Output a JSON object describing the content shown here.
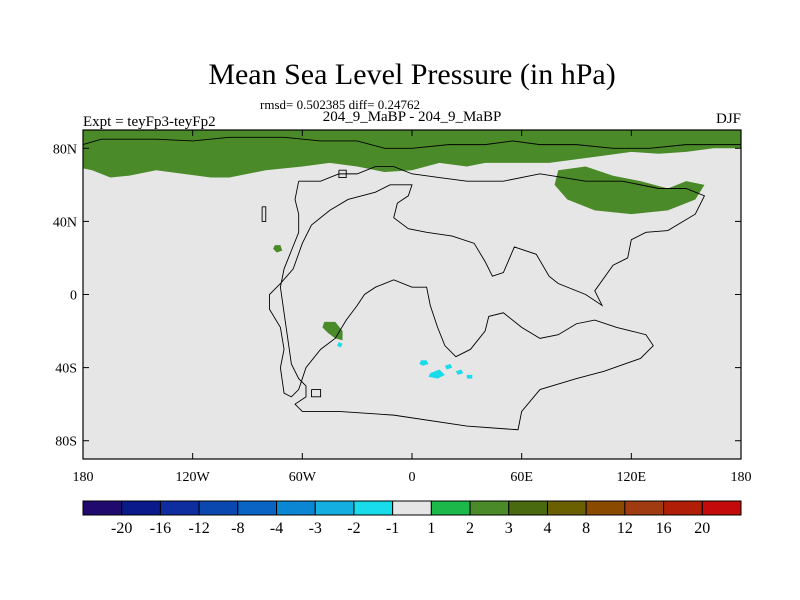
{
  "chart_data": {
    "type": "heatmap",
    "title": "Mean Sea Level Pressure (in hPa)",
    "stats": "rmsd= 0.502385 diff= 0.24762",
    "expt": "Expt = teyFp3-teyFp2",
    "subtitle": "204_9_MaBP - 204_9_MaBP",
    "season": "DJF",
    "x_ticks": [
      {
        "value": -180,
        "label": "180"
      },
      {
        "value": -120,
        "label": "120W"
      },
      {
        "value": -60,
        "label": "60W"
      },
      {
        "value": 0,
        "label": "0"
      },
      {
        "value": 60,
        "label": "60E"
      },
      {
        "value": 120,
        "label": "120E"
      },
      {
        "value": 180,
        "label": "180"
      }
    ],
    "y_ticks": [
      {
        "value": 80,
        "label": "80N"
      },
      {
        "value": 40,
        "label": "40N"
      },
      {
        "value": 0,
        "label": "0"
      },
      {
        "value": -40,
        "label": "40S"
      },
      {
        "value": -80,
        "label": "80S"
      }
    ],
    "xlim": [
      -180,
      180
    ],
    "ylim": [
      -90,
      90
    ],
    "background_value_color": "#e6e6e6",
    "colorbar": {
      "colors": [
        "#200a6e",
        "#0b1a8a",
        "#0e2ea0",
        "#0a48b0",
        "#0a64c4",
        "#0a86d2",
        "#14aee0",
        "#18dcea",
        "#e6e6e6",
        "#1cb84a",
        "#4a8a28",
        "#4a6a10",
        "#6a6000",
        "#8a4a00",
        "#a03a10",
        "#b01e08",
        "#c40a0a"
      ],
      "labels": [
        "-20",
        "-16",
        "-12",
        "-8",
        "-4",
        "-3",
        "-2",
        "-1",
        "1",
        "2",
        "3",
        "4",
        "8",
        "12",
        "16",
        "20"
      ]
    },
    "anomaly_regions": [
      {
        "category": "2",
        "polygon": [
          [
            -180,
            90
          ],
          [
            180,
            90
          ],
          [
            180,
            80
          ],
          [
            165,
            80
          ],
          [
            150,
            78
          ],
          [
            135,
            77
          ],
          [
            120,
            78
          ],
          [
            105,
            76
          ],
          [
            90,
            74
          ],
          [
            75,
            72
          ],
          [
            60,
            72
          ],
          [
            40,
            72
          ],
          [
            30,
            70
          ],
          [
            15,
            72
          ],
          [
            0,
            68
          ],
          [
            -15,
            67
          ],
          [
            -30,
            70
          ],
          [
            -45,
            72
          ],
          [
            -60,
            70
          ],
          [
            -80,
            68
          ],
          [
            -90,
            66
          ],
          [
            -100,
            64
          ],
          [
            -110,
            64
          ],
          [
            -125,
            66
          ],
          [
            -140,
            68
          ],
          [
            -155,
            65
          ],
          [
            -165,
            64
          ],
          [
            -170,
            66
          ],
          [
            -175,
            68
          ],
          [
            -180,
            69
          ]
        ]
      },
      {
        "category": "2",
        "polygon": [
          [
            80,
            68
          ],
          [
            95,
            70
          ],
          [
            110,
            65
          ],
          [
            125,
            62
          ],
          [
            140,
            58
          ],
          [
            150,
            62
          ],
          [
            160,
            60
          ],
          [
            155,
            52
          ],
          [
            140,
            46
          ],
          [
            120,
            44
          ],
          [
            100,
            46
          ],
          [
            85,
            52
          ],
          [
            78,
            60
          ]
        ]
      },
      {
        "category": "2",
        "polygon": [
          [
            -75,
            27
          ],
          [
            -72,
            27
          ],
          [
            -71,
            24
          ],
          [
            -74,
            23
          ],
          [
            -76,
            25
          ]
        ]
      },
      {
        "category": "2",
        "polygon": [
          [
            -48,
            -15
          ],
          [
            -42,
            -15
          ],
          [
            -38,
            -20
          ],
          [
            -38,
            -25
          ],
          [
            -42,
            -24
          ],
          [
            -46,
            -21
          ],
          [
            -49,
            -18
          ]
        ]
      },
      {
        "category": "-1",
        "polygon": [
          [
            -40,
            -26
          ],
          [
            -38,
            -27
          ],
          [
            -39,
            -29
          ],
          [
            -41,
            -28
          ]
        ]
      },
      {
        "category": "-1",
        "polygon": [
          [
            5,
            -36
          ],
          [
            8,
            -36
          ],
          [
            9,
            -38
          ],
          [
            6,
            -39
          ],
          [
            4,
            -38
          ]
        ]
      },
      {
        "category": "-1",
        "polygon": [
          [
            10,
            -43
          ],
          [
            15,
            -41
          ],
          [
            18,
            -44
          ],
          [
            14,
            -46
          ],
          [
            9,
            -45
          ]
        ]
      },
      {
        "category": "-1",
        "polygon": [
          [
            18,
            -39
          ],
          [
            21,
            -38
          ],
          [
            22,
            -40
          ],
          [
            19,
            -41
          ]
        ]
      },
      {
        "category": "-1",
        "polygon": [
          [
            24,
            -42
          ],
          [
            27,
            -41
          ],
          [
            28,
            -43
          ],
          [
            25,
            -44
          ]
        ]
      },
      {
        "category": "-1",
        "polygon": [
          [
            30,
            -44
          ],
          [
            33,
            -44
          ],
          [
            33,
            -46
          ],
          [
            30,
            -46
          ]
        ]
      }
    ],
    "land_outlines": [
      [
        [
          -180,
          82
        ],
        [
          -170,
          85
        ],
        [
          -140,
          85
        ],
        [
          -120,
          84
        ],
        [
          -100,
          86
        ],
        [
          -70,
          86
        ],
        [
          -50,
          84
        ],
        [
          -30,
          84
        ],
        [
          -15,
          80
        ],
        [
          0,
          80
        ],
        [
          20,
          82
        ],
        [
          40,
          82
        ],
        [
          55,
          84
        ],
        [
          70,
          82
        ],
        [
          90,
          82
        ],
        [
          110,
          80
        ],
        [
          130,
          80
        ],
        [
          150,
          82
        ],
        [
          170,
          82
        ],
        [
          180,
          82
        ]
      ],
      [
        [
          -62,
          62
        ],
        [
          -50,
          62
        ],
        [
          -40,
          66
        ],
        [
          -30,
          66
        ],
        [
          -20,
          70
        ],
        [
          -10,
          70
        ],
        [
          0,
          66
        ],
        [
          15,
          64
        ],
        [
          30,
          62
        ],
        [
          50,
          62
        ],
        [
          70,
          66
        ],
        [
          95,
          62
        ],
        [
          115,
          62
        ],
        [
          135,
          58
        ],
        [
          150,
          58
        ],
        [
          160,
          54
        ],
        [
          155,
          44
        ],
        [
          140,
          35
        ],
        [
          128,
          34
        ],
        [
          120,
          30
        ],
        [
          118,
          20
        ],
        [
          110,
          16
        ],
        [
          100,
          2
        ],
        [
          104,
          -6
        ],
        [
          95,
          0
        ],
        [
          80,
          6
        ],
        [
          75,
          10
        ],
        [
          68,
          22
        ],
        [
          56,
          26
        ],
        [
          50,
          12
        ],
        [
          44,
          10
        ],
        [
          40,
          18
        ],
        [
          34,
          28
        ],
        [
          22,
          32
        ],
        [
          8,
          34
        ],
        [
          -2,
          36
        ],
        [
          -10,
          42
        ],
        [
          -8,
          50
        ],
        [
          -2,
          54
        ],
        [
          0,
          60
        ],
        [
          -12,
          60
        ],
        [
          -20,
          56
        ],
        [
          -35,
          52
        ],
        [
          -45,
          46
        ],
        [
          -55,
          38
        ],
        [
          -60,
          28
        ],
        [
          -65,
          14
        ],
        [
          -72,
          6
        ],
        [
          -78,
          0
        ],
        [
          -78,
          -8
        ],
        [
          -72,
          -18
        ],
        [
          -70,
          -30
        ],
        [
          -72,
          -40
        ],
        [
          -70,
          -54
        ],
        [
          -66,
          -56
        ],
        [
          -62,
          -52
        ],
        [
          -58,
          -40
        ],
        [
          -50,
          -30
        ],
        [
          -42,
          -24
        ],
        [
          -36,
          -14
        ],
        [
          -30,
          -6
        ],
        [
          -26,
          0
        ],
        [
          -20,
          4
        ],
        [
          -10,
          8
        ],
        [
          0,
          4
        ],
        [
          8,
          4
        ],
        [
          10,
          -6
        ],
        [
          14,
          -18
        ],
        [
          18,
          -28
        ],
        [
          24,
          -34
        ],
        [
          32,
          -30
        ],
        [
          40,
          -20
        ],
        [
          42,
          -12
        ],
        [
          50,
          -10
        ],
        [
          60,
          -18
        ],
        [
          70,
          -24
        ],
        [
          80,
          -22
        ],
        [
          90,
          -16
        ],
        [
          100,
          -14
        ],
        [
          112,
          -18
        ],
        [
          120,
          -20
        ],
        [
          128,
          -22
        ],
        [
          132,
          -28
        ],
        [
          125,
          -35
        ],
        [
          105,
          -42
        ],
        [
          90,
          -46
        ],
        [
          70,
          -52
        ],
        [
          60,
          -64
        ],
        [
          58,
          -74
        ],
        [
          30,
          -72
        ],
        [
          -10,
          -66
        ],
        [
          -40,
          -64
        ],
        [
          -60,
          -64
        ],
        [
          -64,
          -60
        ],
        [
          -58,
          -56
        ],
        [
          -58,
          -50
        ],
        [
          -62,
          -46
        ],
        [
          -66,
          -38
        ],
        [
          -68,
          -24
        ],
        [
          -70,
          -10
        ],
        [
          -72,
          4
        ],
        [
          -70,
          14
        ],
        [
          -66,
          24
        ],
        [
          -62,
          34
        ],
        [
          -62,
          44
        ],
        [
          -64,
          52
        ],
        [
          -62,
          62
        ]
      ],
      [
        [
          -55,
          -52
        ],
        [
          -50,
          -52
        ],
        [
          -50,
          -56
        ],
        [
          -55,
          -56
        ],
        [
          -55,
          -52
        ]
      ],
      [
        [
          -82,
          48
        ],
        [
          -80,
          48
        ],
        [
          -80,
          40
        ],
        [
          -82,
          40
        ],
        [
          -82,
          48
        ]
      ],
      [
        [
          -40,
          68
        ],
        [
          -36,
          68
        ],
        [
          -36,
          64
        ],
        [
          -40,
          64
        ],
        [
          -40,
          68
        ]
      ]
    ]
  }
}
